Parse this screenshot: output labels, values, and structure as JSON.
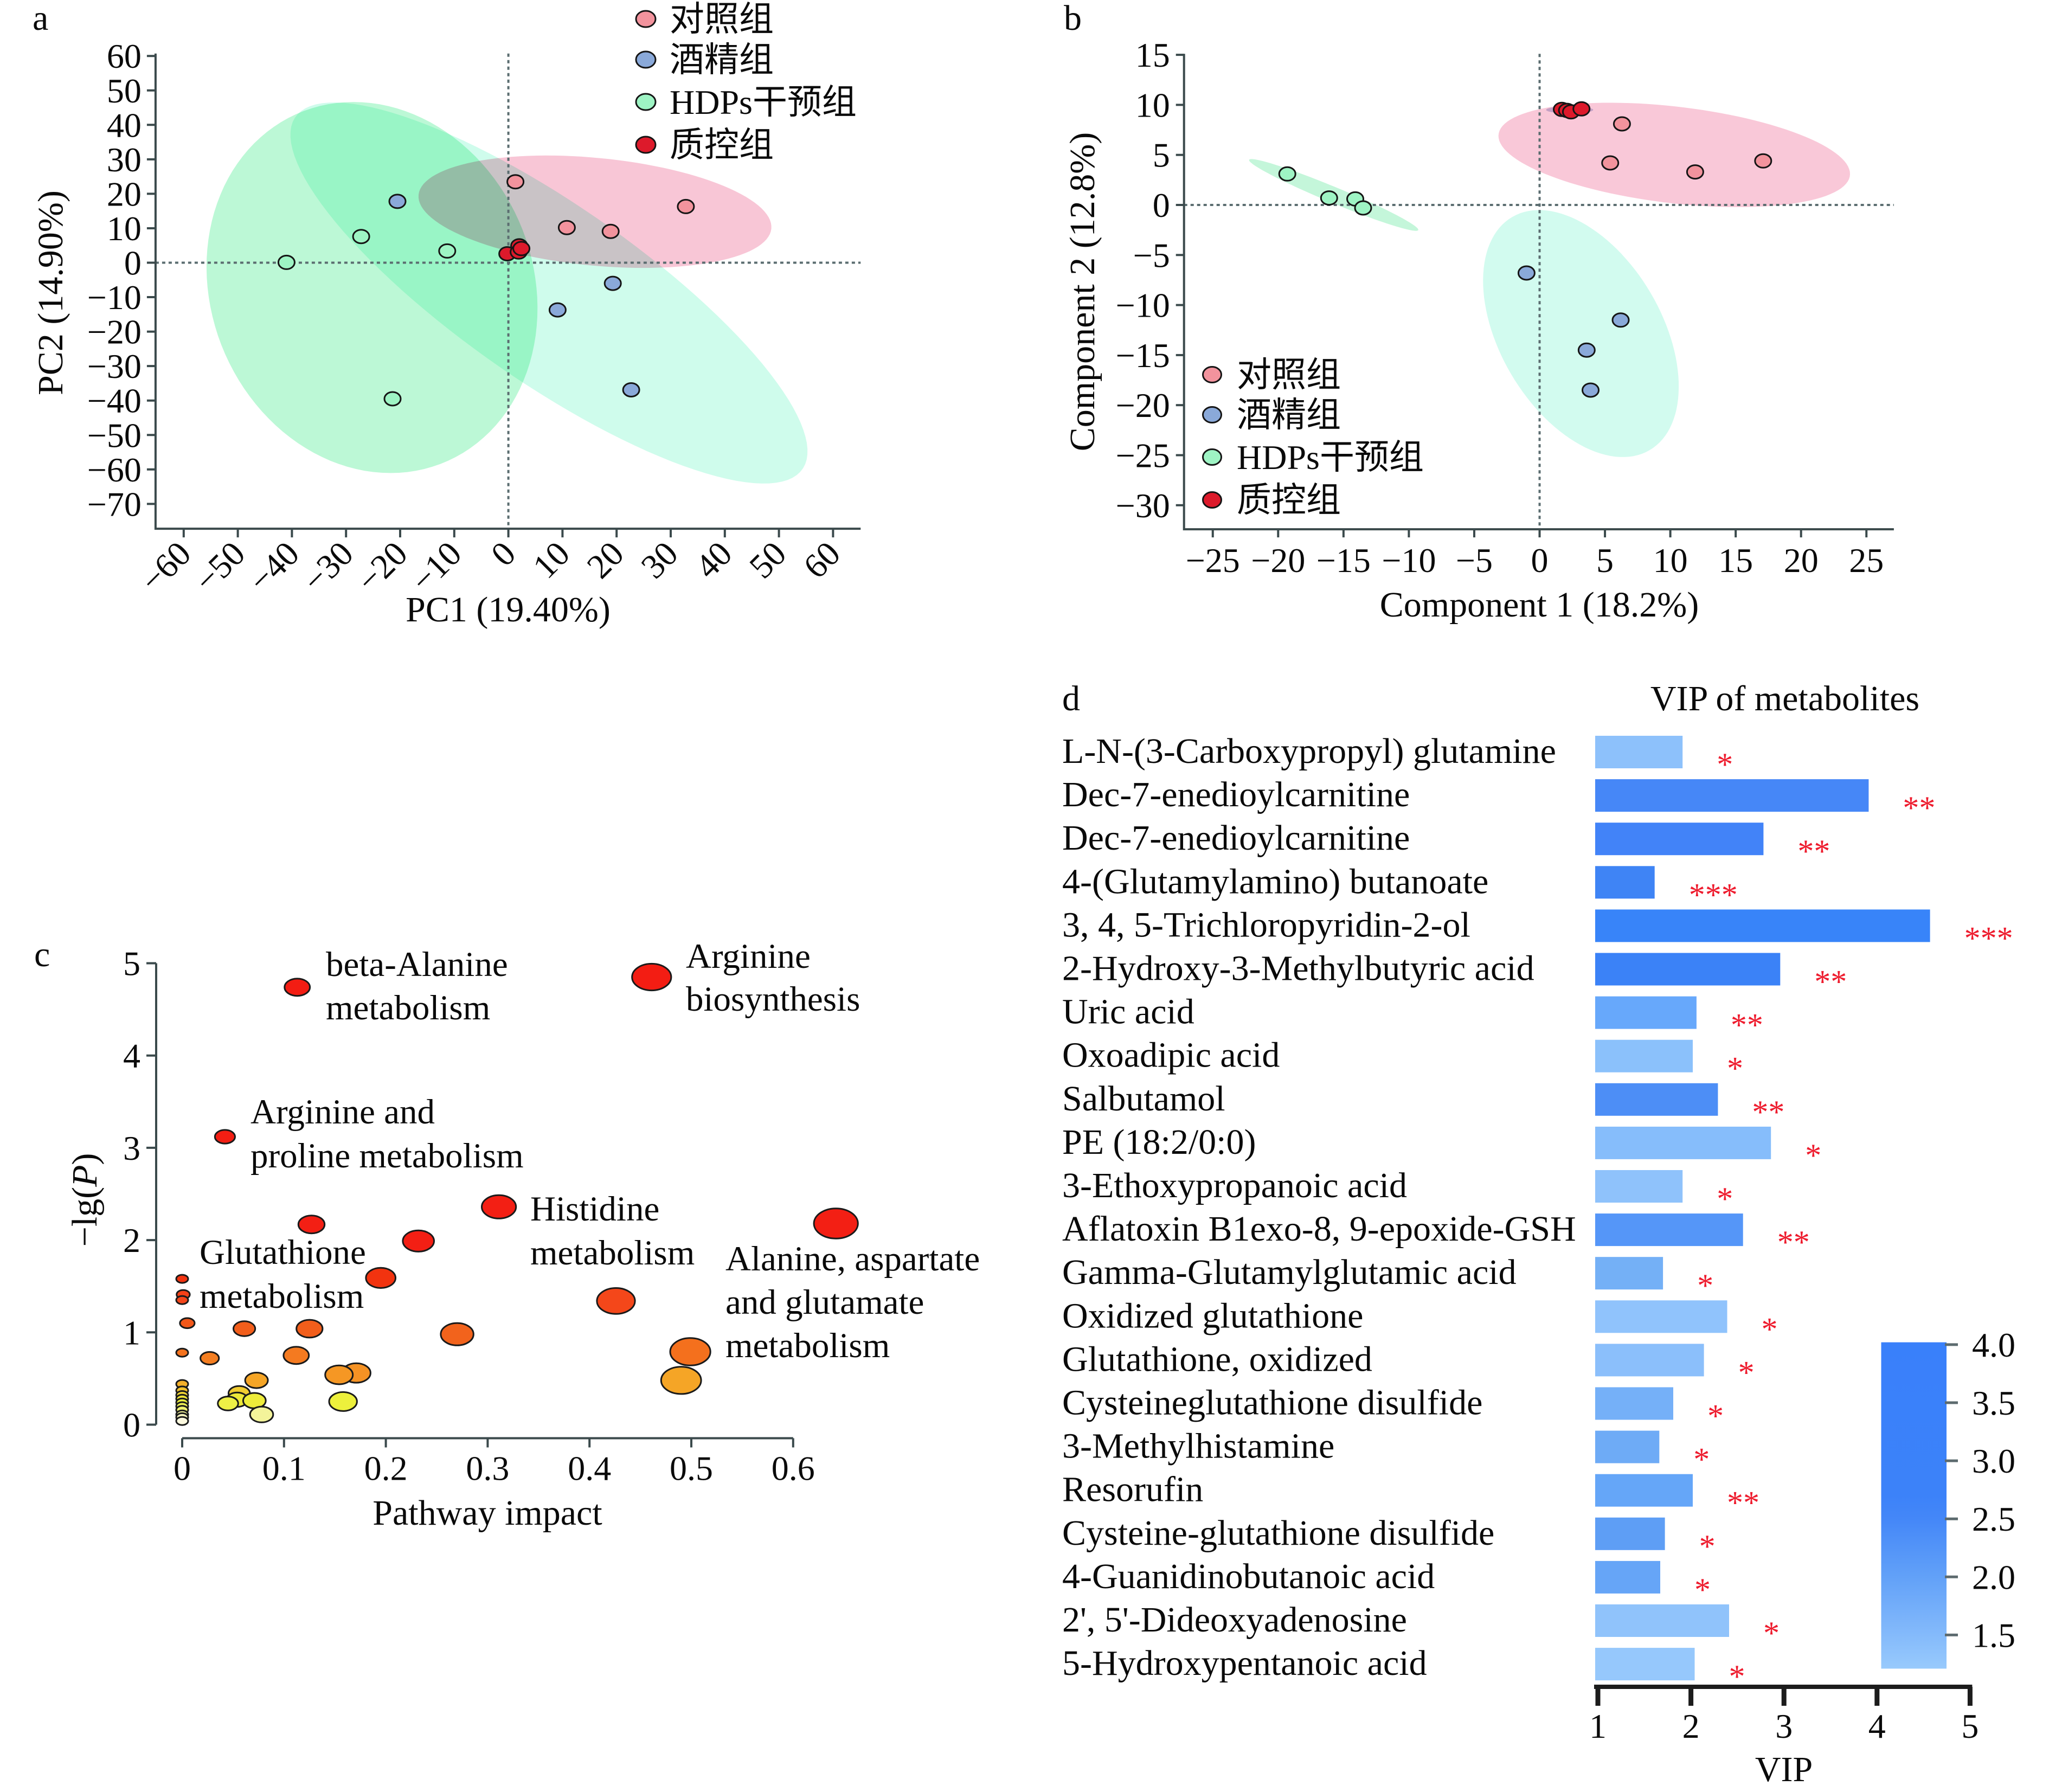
{
  "figure": {
    "panels": [
      {
        "id": "a",
        "label": "a"
      },
      {
        "id": "b",
        "label": "b"
      },
      {
        "id": "c",
        "label": "c"
      },
      {
        "id": "d",
        "label": "d"
      }
    ]
  },
  "chart_data": [
    {
      "panel": "a",
      "type": "scatter",
      "title": "",
      "xlabel": "PC1 (19.40%)",
      "ylabel": "PC2 (14.90%)",
      "xlim": [
        -65.2,
        65.1
      ],
      "ylim": [
        -77.2,
        60.7
      ],
      "xticks": {
        "values": [
          -60,
          -50,
          -40,
          -30,
          -20,
          -10,
          0,
          10,
          20,
          30,
          40,
          50,
          60
        ],
        "labels": [
          "−60",
          "−50",
          "−40",
          "−30",
          "−20",
          "−10",
          "0",
          "10",
          "20",
          "30",
          "40",
          "50",
          "60"
        ]
      },
      "yticks": {
        "values": [
          60,
          50,
          40,
          30,
          20,
          10,
          0,
          -10,
          -20,
          -30,
          -40,
          -50,
          -60,
          -70
        ],
        "labels": [
          "60",
          "50",
          "40",
          "30",
          "20",
          "10",
          "0",
          "−10",
          "−20",
          "−30",
          "−40",
          "−50",
          "−60",
          "−70"
        ]
      },
      "grid": false,
      "reference_lines": {
        "x": 0,
        "y": 0,
        "style": "dotted"
      },
      "legend": {
        "position": "top-right"
      },
      "series": [
        {
          "name": "对照组",
          "color": "#f2939d",
          "ellipse_color": "#f8c6d6",
          "points": [
            [
              1.3,
              23.5
            ],
            [
              10.8,
              10.2
            ],
            [
              18.9,
              9.1
            ],
            [
              32.8,
              16.3
            ]
          ],
          "confidence_ellipse": {
            "center": [
              16.0,
              14.8
            ],
            "semi_axes": [
              33.0,
              15.5
            ],
            "angle_deg": -10
          }
        },
        {
          "name": "酒精组",
          "color": "#8aa9d9",
          "ellipse_color": "#cffcec",
          "points": [
            [
              -20.5,
              17.8
            ],
            [
              9.1,
              -13.7
            ],
            [
              19.3,
              -6.0
            ],
            [
              22.7,
              -36.9
            ]
          ],
          "confidence_ellipse": {
            "center": [
              7.5,
              -8.8
            ],
            "semi_axes": [
              70.0,
              21.0
            ],
            "angle_deg": -50
          }
        },
        {
          "name": "HDPs干预组",
          "color": "#9ef4c4",
          "ellipse_color": "#bcf8d6",
          "points": [
            [
              -41.0,
              0.1
            ],
            [
              -27.2,
              7.6
            ],
            [
              -11.3,
              3.4
            ],
            [
              -21.4,
              -39.5
            ]
          ],
          "confidence_ellipse": {
            "center": [
              -25.2,
              -7.2
            ],
            "semi_axes": [
              54.0,
              30.3
            ],
            "angle_deg": -84.7
          }
        },
        {
          "name": "质控组",
          "color": "#dd1a2b",
          "ellipse_color": "#c6cdea",
          "points": [
            [
              -0.2,
              2.6
            ],
            [
              2.0,
              4.9
            ],
            [
              1.9,
              3.1
            ],
            [
              2.4,
              4.1
            ]
          ],
          "confidence_ellipse": {
            "center": [
              1.6,
              3.8
            ],
            "semi_axes": [
              2.0,
              1.3
            ],
            "angle_deg": 30
          }
        }
      ]
    },
    {
      "panel": "b",
      "type": "scatter",
      "title": "",
      "xlabel": "Component 1 (18.2%)",
      "ylabel": "Component 2 (12.8%)",
      "xlim": [
        -27.2,
        27.1
      ],
      "ylim": [
        -32.4,
        15.1
      ],
      "xticks": {
        "values": [
          -25,
          -20,
          -15,
          -10,
          -5,
          0,
          5,
          10,
          15,
          20,
          25
        ],
        "labels": [
          "−25",
          "−20",
          "−15",
          "−10",
          "−5",
          "0",
          "5",
          "10",
          "15",
          "20",
          "25"
        ]
      },
      "yticks": {
        "values": [
          15,
          10,
          5,
          0,
          -5,
          -10,
          -15,
          -20,
          -25,
          -30
        ],
        "labels": [
          "15",
          "10",
          "5",
          "0",
          "−5",
          "−10",
          "−15",
          "−20",
          "−25",
          "−30"
        ]
      },
      "grid": false,
      "reference_lines": {
        "x": 0,
        "y": 0,
        "style": "dotted"
      },
      "legend": {
        "position": "bottom-left"
      },
      "series": [
        {
          "name": "对照组",
          "color": "#f2939d",
          "ellipse_color": "#f9c8d8",
          "points": [
            [
              6.3,
              8.1
            ],
            [
              5.4,
              4.2
            ],
            [
              11.9,
              3.3
            ],
            [
              17.1,
              4.4
            ]
          ],
          "confidence_ellipse": {
            "center": [
              10.3,
              5.0
            ],
            "semi_axes": [
              13.6,
              4.8
            ],
            "angle_deg": -9.2
          }
        },
        {
          "name": "酒精组",
          "color": "#8aa9d9",
          "ellipse_color": "#d2fbef",
          "points": [
            [
              -1.0,
              -6.8
            ],
            [
              6.2,
              -11.5
            ],
            [
              3.6,
              -14.5
            ],
            [
              3.9,
              -18.5
            ]
          ],
          "confidence_ellipse": {
            "center": [
              3.16,
              -12.85
            ],
            "semi_axes": [
              12.9,
              6.47
            ],
            "angle_deg": -70.3
          }
        },
        {
          "name": "HDPs干预组",
          "color": "#9ef4c4",
          "ellipse_color": "#c4f6da",
          "points": [
            [
              -19.3,
              3.1
            ],
            [
              -16.1,
              0.7
            ],
            [
              -14.1,
              0.6
            ],
            [
              -13.5,
              -0.3
            ]
          ],
          "confidence_ellipse": {
            "center": [
              -15.75,
              1.0
            ],
            "semi_axes": [
              7.36,
              0.75
            ],
            "angle_deg": -28.6
          }
        },
        {
          "name": "质控组",
          "color": "#dd1a2b",
          "ellipse_color": "#c8cce8",
          "points": [
            [
              1.7,
              9.55
            ],
            [
              2.1,
              9.45
            ],
            [
              2.4,
              9.3
            ],
            [
              3.2,
              9.6
            ]
          ],
          "confidence_ellipse": {
            "center": [
              2.3,
              9.5
            ],
            "semi_axes": [
              1.8,
              0.35
            ],
            "angle_deg": 0
          }
        }
      ]
    },
    {
      "panel": "c",
      "type": "scatter",
      "subtype": "bubble",
      "title": "",
      "xlabel": "Pathway impact",
      "ylabel": "−lg(P)",
      "ylabel_parts": [
        "−lg(",
        "P",
        ")"
      ],
      "xlim": [
        0,
        0.6
      ],
      "ylim": [
        0,
        5
      ],
      "xticks": {
        "values": [
          0,
          0.1,
          0.2,
          0.3,
          0.4,
          0.5,
          0.6
        ],
        "labels": [
          "0",
          "0.1",
          "0.2",
          "0.3",
          "0.4",
          "0.5",
          "0.6"
        ]
      },
      "yticks": {
        "values": [
          0,
          1,
          2,
          3,
          4,
          5
        ],
        "labels": [
          "0",
          "1",
          "2",
          "3",
          "4",
          "5"
        ]
      },
      "grid": false,
      "points": [
        {
          "x": 0.113,
          "y": 4.74,
          "label": [
            "beta-Alanine",
            "metabolism"
          ]
        },
        {
          "x": 0.461,
          "y": 4.85,
          "label": [
            "Arginine",
            "biosynthesis"
          ]
        },
        {
          "x": 0.042,
          "y": 3.12,
          "label": [
            "Arginine and",
            "proline metabolism"
          ]
        },
        {
          "x": 0.311,
          "y": 2.36,
          "label": [
            "Histidine",
            "metabolism"
          ]
        },
        {
          "x": 0.642,
          "y": 2.18,
          "label": [
            "Alanine, aspartate",
            "and glutamate",
            "metabolism"
          ]
        },
        {
          "x": 0.127,
          "y": 2.17
        },
        {
          "x": 0.232,
          "y": 1.99
        },
        {
          "x": 0.195,
          "y": 1.59
        },
        {
          "x": 0.426,
          "y": 1.34
        },
        {
          "x": 0.0,
          "y": 1.58,
          "label": [
            "Glutathione",
            "metabolism"
          ]
        },
        {
          "x": 0.001,
          "y": 1.41
        },
        {
          "x": 0.0,
          "y": 1.35
        },
        {
          "x": 0.005,
          "y": 1.1
        },
        {
          "x": 0.061,
          "y": 1.04
        },
        {
          "x": 0.125,
          "y": 1.04
        },
        {
          "x": 0.27,
          "y": 0.98
        },
        {
          "x": 0.0,
          "y": 0.78
        },
        {
          "x": 0.027,
          "y": 0.72
        },
        {
          "x": 0.112,
          "y": 0.75
        },
        {
          "x": 0.499,
          "y": 0.79
        },
        {
          "x": 0.49,
          "y": 0.48
        },
        {
          "x": 0.154,
          "y": 0.54
        },
        {
          "x": 0.171,
          "y": 0.56
        },
        {
          "x": 0.073,
          "y": 0.48
        },
        {
          "x": 0.056,
          "y": 0.34
        },
        {
          "x": 0.054,
          "y": 0.27
        },
        {
          "x": 0.045,
          "y": 0.23
        },
        {
          "x": 0.071,
          "y": 0.26
        },
        {
          "x": 0.078,
          "y": 0.11
        },
        {
          "x": 0.158,
          "y": 0.25
        },
        {
          "x": 0,
          "y": 0.44
        },
        {
          "x": 0,
          "y": 0.37
        },
        {
          "x": 0,
          "y": 0.32
        },
        {
          "x": 0,
          "y": 0.28
        },
        {
          "x": 0,
          "y": 0.24
        },
        {
          "x": 0,
          "y": 0.2
        },
        {
          "x": 0,
          "y": 0.16
        },
        {
          "x": 0,
          "y": 0.11
        },
        {
          "x": 0,
          "y": 0.08
        },
        {
          "x": 0,
          "y": 0.04
        }
      ]
    },
    {
      "panel": "d",
      "type": "bar",
      "orientation": "horizontal",
      "title": "VIP of metabolites",
      "xlabel": "VIP",
      "ylabel": "",
      "xlim": [
        1,
        5
      ],
      "xticks": {
        "values": [
          1,
          2,
          3,
          4,
          5
        ],
        "labels": [
          "1",
          "2",
          "3",
          "4",
          "5"
        ]
      },
      "categories": [
        "L-N-(3-Carboxypropyl) glutamine",
        "Dec-7-enedioylcarnitine",
        "Dec-7-enedioylcarnitine",
        "4-(Glutamylamino) butanoate",
        "3, 4, 5-Trichloropyridin-2-ol",
        "2-Hydroxy-3-Methylbutyric acid",
        "Uric acid",
        "Oxoadipic acid",
        "Salbutamol",
        "PE (18:2/0:0)",
        "3-Ethoxypropanoic acid",
        "Aflatoxin B1exo-8, 9-epoxide-GSH",
        "Gamma-Glutamylglutamic acid",
        "Oxidized glutathione",
        "Glutathione, oxidized",
        "Cysteineglutathione disulfide",
        "3-Methylhistamine",
        "Resorufin",
        "Cysteine-glutathione disulfide",
        "4-Guanidinobutanoic acid",
        "2', 5'-Dideoxyadenosine",
        "5-Hydroxypentanoic acid"
      ],
      "values": [
        1.91,
        3.91,
        2.78,
        1.61,
        4.57,
        2.96,
        2.06,
        2.02,
        2.29,
        2.86,
        1.91,
        2.56,
        1.7,
        2.39,
        2.14,
        1.81,
        1.66,
        2.02,
        1.72,
        1.67,
        2.41,
        2.04
      ],
      "significance": [
        "*",
        "**",
        "**",
        "***",
        "***",
        "**",
        "**",
        "*",
        "**",
        "*",
        "*",
        "**",
        "*",
        "*",
        "*",
        "*",
        "*",
        "**",
        "*",
        "*",
        "*",
        "*"
      ],
      "significance_color": "#ee1c2e",
      "bar_colors": [
        "#8dc1fb",
        "#4687f7",
        "#4283f8",
        "#3f84f5",
        "#3884f9",
        "#3b82f7",
        "#67a8fb",
        "#8bc1fb",
        "#4d8ef6",
        "#86bdfb",
        "#8fc2fb",
        "#5596f8",
        "#74b0f6",
        "#90c3fc",
        "#8bbffb",
        "#75b0f8",
        "#6eabf6",
        "#65a6f8",
        "#5e9ef5",
        "#66a5f7",
        "#90c3fb",
        "#96c8fc"
      ],
      "colorbar": {
        "position": "bottom-right",
        "range": [
          1.21,
          4.02
        ],
        "ticks": {
          "values": [
            4.0,
            3.5,
            3.0,
            2.5,
            2.0,
            1.5
          ],
          "labels": [
            "4.0",
            "3.5",
            "3.0",
            "2.5",
            "2.0",
            "1.5"
          ]
        },
        "gradient": [
          [
            1.21,
            "#98cafc"
          ],
          [
            1.5,
            "#84bafb"
          ],
          [
            2.0,
            "#62a1f8"
          ],
          [
            2.5,
            "#4487f8"
          ],
          [
            2.7,
            "#3c82f9"
          ],
          [
            4.02,
            "#3980fa"
          ]
        ]
      }
    }
  ]
}
